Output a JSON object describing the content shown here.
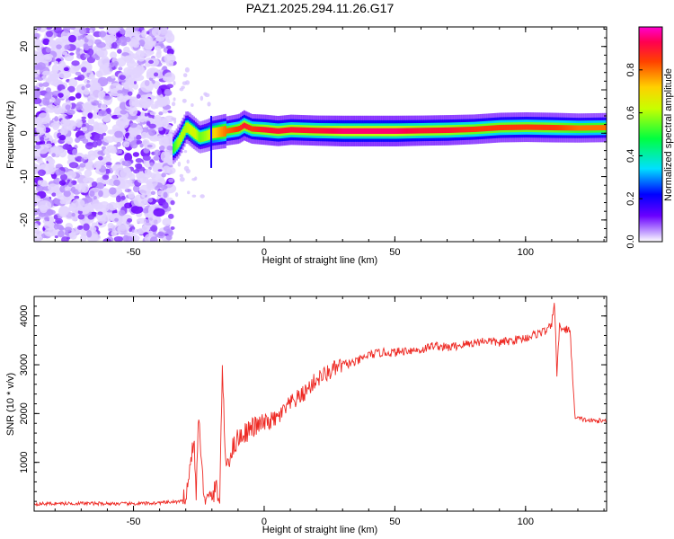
{
  "title": "PAZ1.2025.294.11.26.G17",
  "chart_data": [
    {
      "type": "heatmap",
      "xlabel": "Height of straight line (km)",
      "ylabel": "Frequency (Hz)",
      "xlim": [
        -88,
        131
      ],
      "ylim": [
        -25,
        24.5
      ],
      "xticks": [
        -50,
        0,
        50,
        100
      ],
      "yticks": [
        -20,
        -10,
        0,
        10,
        20
      ],
      "colorbar": {
        "label": "Normalized spectral amplitude",
        "range": [
          0,
          1
        ],
        "ticks": [
          0.0,
          0.2,
          0.4,
          0.6,
          0.8
        ]
      },
      "noise_region": {
        "x_range": [
          -88,
          -35
        ],
        "freq_range": [
          -25,
          24.5
        ],
        "amplitude_approx": 0.15
      },
      "signal_ridge": {
        "x": [
          -35,
          -33,
          -30,
          -27,
          -25,
          -22,
          -20,
          -15,
          -10,
          -8,
          -5,
          0,
          5,
          10,
          20,
          30,
          40,
          50,
          60,
          70,
          80,
          90,
          100,
          110,
          120,
          131
        ],
        "frequency_hz": [
          -3.5,
          -2.0,
          1.5,
          0.0,
          -1.0,
          -0.5,
          0.0,
          0.5,
          1.0,
          1.8,
          1.0,
          0.8,
          0.5,
          0.8,
          0.6,
          0.5,
          0.5,
          0.5,
          0.6,
          0.7,
          0.9,
          1.3,
          1.4,
          1.3,
          1.2,
          1.3
        ],
        "amplitude": [
          0.5,
          0.6,
          0.6,
          0.65,
          0.55,
          0.6,
          0.7,
          0.8,
          0.85,
          0.9,
          0.85,
          0.9,
          0.9,
          0.9,
          0.9,
          0.95,
          0.95,
          0.95,
          0.9,
          0.9,
          0.85,
          0.85,
          0.85,
          0.85,
          0.8,
          0.8
        ]
      }
    },
    {
      "type": "line",
      "xlabel": "Height of straight line (km)",
      "ylabel": "SNR (10 * v/v)",
      "xlim": [
        -88,
        131
      ],
      "ylim": [
        0,
        4400
      ],
      "xticks": [
        -50,
        0,
        50,
        100
      ],
      "yticks": [
        1000,
        2000,
        3000,
        4000
      ],
      "color": "#ee2a24",
      "series": [
        {
          "x": [
            -88,
            -70,
            -50,
            -40,
            -31,
            -29,
            -27,
            -26,
            -25,
            -24,
            -23,
            -22,
            -20,
            -18,
            -17,
            -16,
            -15,
            -14,
            -12,
            -10,
            -5,
            0,
            5,
            10,
            15,
            20,
            25,
            30,
            35,
            40,
            45,
            50,
            55,
            60,
            65,
            70,
            75,
            80,
            85,
            90,
            95,
            100,
            105,
            108,
            110,
            111,
            112,
            113,
            115,
            117,
            118,
            119,
            120,
            125,
            131
          ],
          "y": [
            150,
            160,
            150,
            170,
            200,
            600,
            1500,
            400,
            2050,
            900,
            400,
            200,
            300,
            500,
            150,
            3050,
            1100,
            1000,
            1300,
            1500,
            1700,
            1800,
            1900,
            2200,
            2400,
            2700,
            2850,
            3000,
            3050,
            3200,
            3250,
            3250,
            3300,
            3300,
            3400,
            3350,
            3400,
            3450,
            3500,
            3450,
            3500,
            3550,
            3650,
            3700,
            3800,
            4350,
            2800,
            3800,
            3700,
            3750,
            2700,
            1900,
            1900,
            1850,
            1850
          ]
        }
      ]
    }
  ]
}
